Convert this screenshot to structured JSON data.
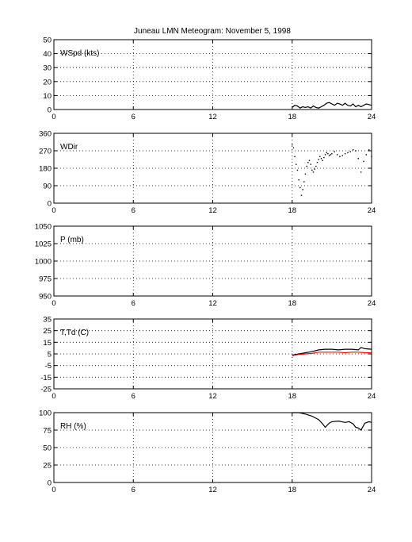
{
  "title": "Juneau LMN Meteogram:  November  5, 1998",
  "chart_data": [
    {
      "type": "line",
      "label": "WSpd (kts)",
      "xlim": [
        0,
        24
      ],
      "xticks": [
        0,
        6,
        12,
        18,
        24
      ],
      "ylim": [
        0,
        50
      ],
      "yticks": [
        0,
        10,
        20,
        30,
        40,
        50
      ],
      "grid": true,
      "series": [
        {
          "color": "#000000",
          "x": [
            18.0,
            18.2,
            18.4,
            18.6,
            18.8,
            19.0,
            19.2,
            19.4,
            19.6,
            19.8,
            20.0,
            20.2,
            20.4,
            20.6,
            20.8,
            21.0,
            21.2,
            21.4,
            21.6,
            21.8,
            22.0,
            22.2,
            22.4,
            22.6,
            22.8,
            23.0,
            23.2,
            23.4,
            23.6,
            23.8,
            24.0
          ],
          "y": [
            1.5,
            3.0,
            2.5,
            1.0,
            2.0,
            1.5,
            2.0,
            1.0,
            2.5,
            1.5,
            1.0,
            2.0,
            3.0,
            4.5,
            5.0,
            4.0,
            3.0,
            4.5,
            4.0,
            3.0,
            4.5,
            3.0,
            2.5,
            4.0,
            2.0,
            3.0,
            2.0,
            3.0,
            4.0,
            3.5,
            3.0
          ]
        }
      ]
    },
    {
      "type": "scatter",
      "label": "WDir",
      "xlim": [
        0,
        24
      ],
      "xticks": [
        0,
        6,
        12,
        18,
        24
      ],
      "ylim": [
        0,
        360
      ],
      "yticks": [
        0,
        90,
        180,
        270,
        360
      ],
      "grid": true,
      "series": [
        {
          "color": "#000000",
          "x": [
            18.0,
            18.1,
            18.2,
            18.3,
            18.4,
            18.5,
            18.6,
            18.7,
            18.8,
            18.9,
            19.0,
            19.1,
            19.2,
            19.3,
            19.4,
            19.5,
            19.6,
            19.7,
            19.8,
            19.9,
            20.0,
            20.1,
            20.2,
            20.3,
            20.4,
            20.5,
            20.6,
            20.7,
            20.8,
            20.9,
            21.0,
            21.2,
            21.4,
            21.6,
            21.8,
            22.0,
            22.2,
            22.4,
            22.6,
            22.8,
            23.0,
            23.2,
            23.4,
            23.6,
            23.8,
            24.0
          ],
          "y": [
            300,
            285,
            240,
            200,
            170,
            120,
            80,
            40,
            70,
            110,
            150,
            190,
            210,
            220,
            200,
            170,
            160,
            175,
            190,
            210,
            225,
            240,
            230,
            220,
            235,
            250,
            260,
            255,
            245,
            250,
            255,
            265,
            250,
            240,
            245,
            255,
            260,
            265,
            275,
            270,
            230,
            160,
            215,
            250,
            275,
            240
          ]
        }
      ]
    },
    {
      "type": "line",
      "label": "P (mb)",
      "xlim": [
        0,
        24
      ],
      "xticks": [
        0,
        6,
        12,
        18,
        24
      ],
      "ylim": [
        950,
        1050
      ],
      "yticks": [
        950,
        975,
        1000,
        1025,
        1050
      ],
      "grid": true,
      "series": []
    },
    {
      "type": "line",
      "label": "T,Td (C)",
      "xlim": [
        0,
        24
      ],
      "xticks": [
        0,
        6,
        12,
        18,
        24
      ],
      "ylim": [
        -25,
        35
      ],
      "yticks": [
        -25,
        -15,
        -5,
        5,
        15,
        25,
        35
      ],
      "grid": true,
      "series": [
        {
          "color": "#000000",
          "x": [
            18.0,
            18.5,
            19.0,
            19.5,
            20.0,
            20.5,
            21.0,
            21.5,
            22.0,
            22.5,
            23.0,
            23.2,
            23.5,
            24.0
          ],
          "y": [
            4.0,
            5.0,
            6.0,
            7.0,
            8.5,
            9.0,
            9.0,
            8.5,
            9.0,
            9.0,
            8.5,
            10.5,
            9.5,
            9.0
          ]
        },
        {
          "color": "#ff0000",
          "x": [
            18.0,
            18.5,
            19.0,
            19.5,
            20.0,
            20.5,
            21.0,
            21.5,
            22.0,
            22.5,
            23.0,
            23.5,
            24.0
          ],
          "y": [
            3.5,
            4.5,
            5.0,
            5.5,
            6.5,
            6.5,
            6.5,
            6.5,
            6.0,
            6.5,
            6.5,
            6.0,
            6.0
          ]
        }
      ]
    },
    {
      "type": "line",
      "label": "RH (%)",
      "xlim": [
        0,
        24
      ],
      "xticks": [
        0,
        6,
        12,
        18,
        24
      ],
      "ylim": [
        0,
        100
      ],
      "yticks": [
        0,
        25,
        50,
        75,
        100
      ],
      "grid": true,
      "series": [
        {
          "color": "#000000",
          "x": [
            18.0,
            18.5,
            19.0,
            19.5,
            20.0,
            20.3,
            20.5,
            20.8,
            21.0,
            21.5,
            22.0,
            22.3,
            22.6,
            22.8,
            23.0,
            23.2,
            23.5,
            23.8,
            24.0
          ],
          "y": [
            100,
            100,
            98,
            95,
            90,
            84,
            79,
            85,
            87,
            88,
            86,
            87,
            84,
            79,
            78,
            75,
            85,
            87,
            86
          ]
        }
      ]
    }
  ]
}
